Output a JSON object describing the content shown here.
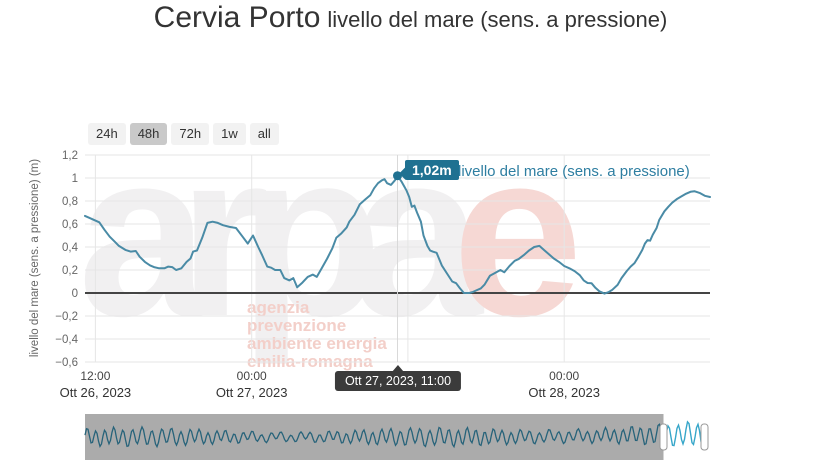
{
  "title": {
    "main": "Cervia Porto",
    "subtitle": "livello del mare (sens. a pressione)"
  },
  "range_buttons": [
    {
      "label": "24h",
      "selected": false
    },
    {
      "label": "48h",
      "selected": true
    },
    {
      "label": "72h",
      "selected": false
    },
    {
      "label": "1w",
      "selected": false
    },
    {
      "label": "all",
      "selected": false
    }
  ],
  "y_axis": {
    "title": "livello del mare (sens. a pressione) (m)"
  },
  "tooltip": {
    "value_label": "1,02m",
    "series_label": "livello del mare (sens. a pressione)",
    "x_label": "Ott 27, 2023, 11:00",
    "point_hour": 35.2,
    "point_value": 1.02
  },
  "watermark": {
    "word_gray": "arpa",
    "word_red": "e",
    "lines": [
      "agenzia",
      "prevenzione",
      "ambiente energia",
      "emilia-romagna"
    ]
  },
  "colors": {
    "series_line": "#4a8ba6",
    "tooltip_value_bg": "#1f7191",
    "series_label_text": "#2e7ea1",
    "x_tooltip_bg": "#3b3b3b",
    "grid_line": "#e6e6e6",
    "zero_line": "#444444",
    "crosshair": "#d9d9d9",
    "axis_text": "#666666",
    "date_text": "#333333",
    "button_bg": "#f2f2f2",
    "button_selected_bg": "#c9c9c9",
    "nav_mask": "#ababab",
    "nav_wave_masked": "#27637a",
    "nav_wave_window": "#36a6c9",
    "nav_handle_border": "#999999",
    "watermark_gray": "#f1f0f1",
    "watermark_red": "#f6d8d4",
    "watermark_lines": "#f3cfc9"
  },
  "chart_data": {
    "type": "line",
    "title": "Cervia Porto livello del mare (sens. a pressione)",
    "x_unit": "hours since Ott 26, 2023 00:00",
    "xlim": [
      11.2,
      59.2
    ],
    "ylim": [
      -0.6,
      1.2
    ],
    "grid": true,
    "y_ticks": [
      {
        "value": 1.2,
        "label": "1,2"
      },
      {
        "value": 1,
        "label": "1"
      },
      {
        "value": 0.8,
        "label": "0,8"
      },
      {
        "value": 0.6,
        "label": "0,6"
      },
      {
        "value": 0.4,
        "label": "0,4"
      },
      {
        "value": 0.2,
        "label": "0,2"
      },
      {
        "value": 0,
        "label": "0"
      },
      {
        "value": -0.2,
        "label": "−0,2"
      },
      {
        "value": -0.4,
        "label": "−0,4"
      },
      {
        "value": -0.6,
        "label": "−0,6"
      }
    ],
    "x_gridlines": [
      12,
      24,
      36,
      48
    ],
    "x_ticks": [
      {
        "hour": 12,
        "time": "12:00",
        "date": "Ott 26, 2023"
      },
      {
        "hour": 24,
        "time": "00:00",
        "date": "Ott 27, 2023"
      },
      {
        "hour": 48,
        "time": "00:00",
        "date": "Ott 28, 2023"
      }
    ],
    "series": [
      {
        "name": "livello del mare (sens. a pressione)",
        "unit": "m",
        "points": [
          [
            11.2,
            0.67
          ],
          [
            11.7,
            0.645
          ],
          [
            12.3,
            0.615
          ],
          [
            12.7,
            0.55
          ],
          [
            13.1,
            0.49
          ],
          [
            13.5,
            0.445
          ],
          [
            13.8,
            0.41
          ],
          [
            14.3,
            0.375
          ],
          [
            14.7,
            0.36
          ],
          [
            15.1,
            0.365
          ],
          [
            15.4,
            0.315
          ],
          [
            15.8,
            0.27
          ],
          [
            16.2,
            0.24
          ],
          [
            16.5,
            0.225
          ],
          [
            16.9,
            0.215
          ],
          [
            17.3,
            0.215
          ],
          [
            17.6,
            0.23
          ],
          [
            17.9,
            0.225
          ],
          [
            18.2,
            0.2
          ],
          [
            18.6,
            0.215
          ],
          [
            19.0,
            0.27
          ],
          [
            19.3,
            0.3
          ],
          [
            19.5,
            0.36
          ],
          [
            19.8,
            0.37
          ],
          [
            20.2,
            0.48
          ],
          [
            20.6,
            0.61
          ],
          [
            21.0,
            0.62
          ],
          [
            21.4,
            0.61
          ],
          [
            21.8,
            0.59
          ],
          [
            22.3,
            0.575
          ],
          [
            22.8,
            0.565
          ],
          [
            23.3,
            0.49
          ],
          [
            23.7,
            0.43
          ],
          [
            24.1,
            0.5
          ],
          [
            24.5,
            0.4
          ],
          [
            24.8,
            0.33
          ],
          [
            25.2,
            0.23
          ],
          [
            25.5,
            0.22
          ],
          [
            25.8,
            0.2
          ],
          [
            26.2,
            0.2
          ],
          [
            26.5,
            0.13
          ],
          [
            26.9,
            0.11
          ],
          [
            27.2,
            0.13
          ],
          [
            27.5,
            0.05
          ],
          [
            27.9,
            0.09
          ],
          [
            28.3,
            0.14
          ],
          [
            28.7,
            0.16
          ],
          [
            29.0,
            0.14
          ],
          [
            29.4,
            0.22
          ],
          [
            29.8,
            0.3
          ],
          [
            30.2,
            0.39
          ],
          [
            30.5,
            0.48
          ],
          [
            30.9,
            0.52
          ],
          [
            31.3,
            0.57
          ],
          [
            31.5,
            0.62
          ],
          [
            31.9,
            0.68
          ],
          [
            32.3,
            0.77
          ],
          [
            32.7,
            0.81
          ],
          [
            33.1,
            0.85
          ],
          [
            33.4,
            0.91
          ],
          [
            33.7,
            0.955
          ],
          [
            34.0,
            0.98
          ],
          [
            34.2,
            0.99
          ],
          [
            34.4,
            0.955
          ],
          [
            34.7,
            0.94
          ],
          [
            35.0,
            0.98
          ],
          [
            35.2,
            1.02
          ],
          [
            35.5,
            0.97
          ],
          [
            35.7,
            0.93
          ],
          [
            35.9,
            0.89
          ],
          [
            36.1,
            0.835
          ],
          [
            36.3,
            0.75
          ],
          [
            36.5,
            0.76
          ],
          [
            36.7,
            0.7
          ],
          [
            37.0,
            0.62
          ],
          [
            37.2,
            0.5
          ],
          [
            37.5,
            0.41
          ],
          [
            37.7,
            0.37
          ],
          [
            37.9,
            0.36
          ],
          [
            38.2,
            0.35
          ],
          [
            38.6,
            0.24
          ],
          [
            39.0,
            0.17
          ],
          [
            39.4,
            0.1
          ],
          [
            39.7,
            0.085
          ],
          [
            40.0,
            0.04
          ],
          [
            40.3,
            0.0
          ],
          [
            40.7,
            0.0
          ],
          [
            41.0,
            0.01
          ],
          [
            41.3,
            0.025
          ],
          [
            41.6,
            0.04
          ],
          [
            41.9,
            0.075
          ],
          [
            42.3,
            0.15
          ],
          [
            42.7,
            0.175
          ],
          [
            43.1,
            0.2
          ],
          [
            43.4,
            0.18
          ],
          [
            43.8,
            0.235
          ],
          [
            44.2,
            0.28
          ],
          [
            44.5,
            0.295
          ],
          [
            44.9,
            0.33
          ],
          [
            45.3,
            0.37
          ],
          [
            45.7,
            0.4
          ],
          [
            46.1,
            0.41
          ],
          [
            46.5,
            0.37
          ],
          [
            46.8,
            0.34
          ],
          [
            47.2,
            0.3
          ],
          [
            47.6,
            0.27
          ],
          [
            48.0,
            0.235
          ],
          [
            48.4,
            0.215
          ],
          [
            48.8,
            0.19
          ],
          [
            49.2,
            0.155
          ],
          [
            49.5,
            0.11
          ],
          [
            49.8,
            0.087
          ],
          [
            50.1,
            0.085
          ],
          [
            50.4,
            0.045
          ],
          [
            50.7,
            0.015
          ],
          [
            51.1,
            -0.005
          ],
          [
            51.4,
            0.007
          ],
          [
            51.7,
            0.028
          ],
          [
            52.1,
            0.07
          ],
          [
            52.4,
            0.13
          ],
          [
            52.8,
            0.19
          ],
          [
            53.1,
            0.23
          ],
          [
            53.4,
            0.26
          ],
          [
            53.7,
            0.315
          ],
          [
            54.0,
            0.375
          ],
          [
            54.2,
            0.43
          ],
          [
            54.4,
            0.46
          ],
          [
            54.6,
            0.455
          ],
          [
            54.8,
            0.505
          ],
          [
            55.1,
            0.565
          ],
          [
            55.3,
            0.635
          ],
          [
            55.7,
            0.71
          ],
          [
            56.0,
            0.75
          ],
          [
            56.3,
            0.785
          ],
          [
            56.7,
            0.82
          ],
          [
            57.0,
            0.84
          ],
          [
            57.3,
            0.86
          ],
          [
            57.7,
            0.88
          ],
          [
            58.0,
            0.885
          ],
          [
            58.4,
            0.87
          ],
          [
            58.8,
            0.845
          ],
          [
            59.2,
            0.835
          ]
        ]
      }
    ]
  }
}
